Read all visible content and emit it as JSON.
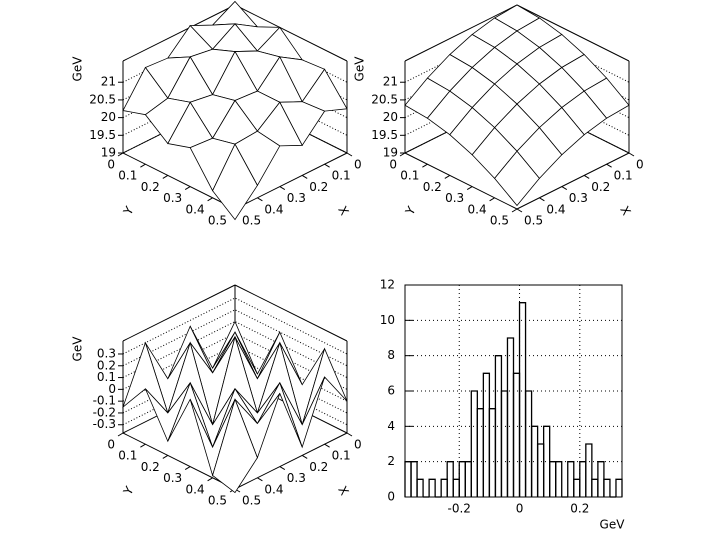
{
  "chart_data": [
    {
      "type": "surface",
      "zlabel": "GeV",
      "xlabel": "X",
      "ylabel": "Y",
      "x": [
        0,
        0.1,
        0.2,
        0.3,
        0.4,
        0.5
      ],
      "y": [
        0,
        0.1,
        0.2,
        0.3,
        0.4,
        0.5
      ],
      "z": [
        [
          21.7,
          21.35,
          21.65,
          21.05,
          21.1,
          20.2
        ],
        [
          21.3,
          21.7,
          21.3,
          21.4,
          20.55,
          20.4
        ],
        [
          21.6,
          21.25,
          21.55,
          20.65,
          20.75,
          19.9
        ],
        [
          21.0,
          21.4,
          20.75,
          20.8,
          20.05,
          20.1
        ],
        [
          21.05,
          20.45,
          20.75,
          20.25,
          20.2,
          19.2
        ],
        [
          20.25,
          20.5,
          19.85,
          20.15,
          19.35,
          18.7
        ]
      ],
      "xlim": [
        0,
        0.5
      ],
      "ylim": [
        0,
        0.5
      ],
      "zlim": [
        19,
        21.6
      ],
      "xticks": [
        0,
        0.1,
        0.2,
        0.3,
        0.4,
        0.5
      ],
      "yticks": [
        0,
        0.1,
        0.2,
        0.3,
        0.4,
        0.5
      ],
      "zticks": [
        19,
        19.5,
        20,
        20.5,
        21
      ]
    },
    {
      "type": "surface",
      "zlabel": "GeV",
      "xlabel": "X",
      "ylabel": "Y",
      "x": [
        0,
        0.1,
        0.2,
        0.3,
        0.4,
        0.5
      ],
      "y": [
        0,
        0.1,
        0.2,
        0.3,
        0.4,
        0.5
      ],
      "z": [
        [
          21.6,
          21.55,
          21.4,
          21.15,
          20.8,
          20.35
        ],
        [
          21.55,
          21.5,
          21.35,
          21.1,
          20.75,
          20.3
        ],
        [
          21.4,
          21.35,
          21.2,
          20.95,
          20.6,
          20.15
        ],
        [
          21.15,
          21.1,
          20.95,
          20.7,
          20.35,
          19.9
        ],
        [
          20.8,
          20.75,
          20.6,
          20.35,
          20.0,
          19.55
        ],
        [
          20.35,
          20.3,
          20.15,
          19.9,
          19.55,
          19.1
        ]
      ],
      "xlim": [
        0,
        0.5
      ],
      "ylim": [
        0,
        0.5
      ],
      "zlim": [
        19,
        21.6
      ],
      "xticks": [
        0,
        0.1,
        0.2,
        0.3,
        0.4,
        0.5
      ],
      "yticks": [
        0,
        0.1,
        0.2,
        0.3,
        0.4,
        0.5
      ],
      "zticks": [
        19,
        19.5,
        20,
        20.5,
        21
      ]
    },
    {
      "type": "surface",
      "zlabel": "GeV",
      "xlabel": "X",
      "ylabel": "Y",
      "x": [
        0,
        0.1,
        0.2,
        0.3,
        0.4,
        0.5
      ],
      "y": [
        0,
        0.1,
        0.2,
        0.3,
        0.4,
        0.5
      ],
      "z": [
        [
          0.1,
          -0.2,
          0.25,
          -0.1,
          0.3,
          -0.15
        ],
        [
          -0.25,
          0.2,
          -0.05,
          0.3,
          -0.2,
          0.1
        ],
        [
          0.2,
          -0.1,
          0.35,
          -0.3,
          0.15,
          -0.25
        ],
        [
          -0.15,
          0.3,
          -0.2,
          0.1,
          -0.3,
          0.2
        ],
        [
          0.25,
          -0.3,
          0.15,
          -0.1,
          0.2,
          -0.35
        ],
        [
          -0.1,
          0.2,
          -0.3,
          0.25,
          -0.2,
          -0.4
        ]
      ],
      "xlim": [
        0,
        0.5
      ],
      "ylim": [
        0,
        0.5
      ],
      "zlim": [
        -0.37,
        0.41
      ],
      "xticks": [
        0,
        0.1,
        0.2,
        0.3,
        0.4,
        0.5
      ],
      "yticks": [
        0,
        0.1,
        0.2,
        0.3,
        0.4,
        0.5
      ],
      "zticks": [
        -0.3,
        -0.2,
        -0.1,
        0,
        0.1,
        0.2,
        0.3
      ]
    },
    {
      "type": "histogram",
      "xlabel": "GeV",
      "color": "#000000",
      "grid": true,
      "bins": [
        -0.38,
        -0.36,
        -0.34,
        -0.32,
        -0.3,
        -0.28,
        -0.26,
        -0.24,
        -0.22,
        -0.2,
        -0.18,
        -0.16,
        -0.14,
        -0.12,
        -0.1,
        -0.08,
        -0.06,
        -0.04,
        -0.02,
        0,
        0.02,
        0.04,
        0.06,
        0.08,
        0.1,
        0.12,
        0.14,
        0.16,
        0.18,
        0.2,
        0.22,
        0.24,
        0.26,
        0.28,
        0.3,
        0.32,
        0.34
      ],
      "values": [
        2,
        2,
        1,
        0,
        1,
        0,
        1,
        2,
        1,
        2,
        2,
        6,
        5,
        7,
        5,
        8,
        6,
        9,
        7,
        11,
        6,
        4,
        3,
        4,
        2,
        2,
        0,
        2,
        1,
        2,
        3,
        1,
        2,
        1,
        0,
        1
      ],
      "xlim": [
        -0.38,
        0.34
      ],
      "ylim": [
        0,
        12
      ],
      "xticks": [
        -0.2,
        0,
        0.2
      ],
      "yticks": [
        0,
        2,
        4,
        6,
        8,
        10,
        12
      ]
    }
  ]
}
